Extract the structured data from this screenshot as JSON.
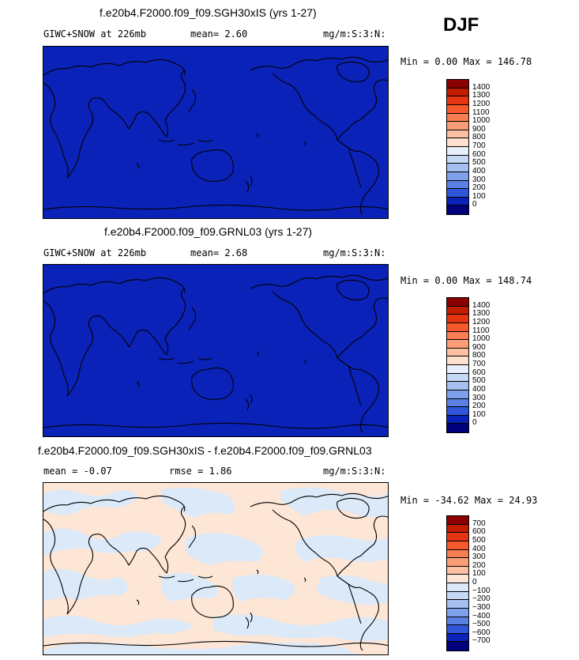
{
  "season": "DJF",
  "colors": {
    "ocean_blue": "#0b22b8",
    "diff_light_blue": "#dbe9f9",
    "diff_peach": "#fde6d6",
    "coast": "#000000"
  },
  "panels": [
    {
      "title": "f.e20b4.F2000.f09_f09.SGH30xIS (yrs 1-27)",
      "left_text": "GIWC+SNOW at 226mb",
      "mean_text": "mean=   2.60",
      "units": "mg/m:S:3:N:",
      "minmax": "Min =   0.00 Max = 146.78",
      "fill": "uniform-blue",
      "colorbar": {
        "labels": [
          "1400",
          "1300",
          "1200",
          "1100",
          "1000",
          "900",
          "800",
          "700",
          "600",
          "500",
          "400",
          "300",
          "200",
          "100",
          "0"
        ],
        "colors": [
          "#8b0000",
          "#c21d00",
          "#e43411",
          "#f45a2c",
          "#f87d52",
          "#fb9e78",
          "#fdc0a2",
          "#fde0cd",
          "#e6effa",
          "#c5d8f4",
          "#a4bff0",
          "#7fa0ea",
          "#5b7fe3",
          "#2f55d8",
          "#0b22b8",
          "#00007a"
        ]
      }
    },
    {
      "title": "f.e20b4.F2000.f09_f09.GRNL03 (yrs 1-27)",
      "left_text": "GIWC+SNOW at 226mb",
      "mean_text": "mean=   2.68",
      "units": "mg/m:S:3:N:",
      "minmax": "Min =   0.00 Max = 148.74",
      "fill": "uniform-blue",
      "colorbar": {
        "labels": [
          "1400",
          "1300",
          "1200",
          "1100",
          "1000",
          "900",
          "800",
          "700",
          "600",
          "500",
          "400",
          "300",
          "200",
          "100",
          "0"
        ],
        "colors": [
          "#8b0000",
          "#c21d00",
          "#e43411",
          "#f45a2c",
          "#f87d52",
          "#fb9e78",
          "#fdc0a2",
          "#fde0cd",
          "#e6effa",
          "#c5d8f4",
          "#a4bff0",
          "#7fa0ea",
          "#5b7fe3",
          "#2f55d8",
          "#0b22b8",
          "#00007a"
        ]
      }
    },
    {
      "title": "f.e20b4.F2000.f09_f09.SGH30xIS - f.e20b4.F2000.f09_f09.GRNL03",
      "left_text": "mean =   -0.07",
      "mean_text": "rmse =   1.86",
      "units": "mg/m:S:3:N:",
      "minmax": "Min = -34.62 Max =  24.93",
      "fill": "difference",
      "colorbar": {
        "labels": [
          "700",
          "600",
          "500",
          "400",
          "300",
          "200",
          "100",
          "0",
          "−100",
          "−200",
          "−300",
          "−400",
          "−500",
          "−600",
          "−700"
        ],
        "colors": [
          "#8b0000",
          "#c21d00",
          "#e43411",
          "#f45a2c",
          "#f87d52",
          "#fb9e78",
          "#fdc0a2",
          "#fde6d6",
          "#dbe9f9",
          "#c5d8f4",
          "#a4bff0",
          "#7fa0ea",
          "#5b7fe3",
          "#2f55d8",
          "#0b22b8",
          "#00007a"
        ]
      }
    }
  ]
}
